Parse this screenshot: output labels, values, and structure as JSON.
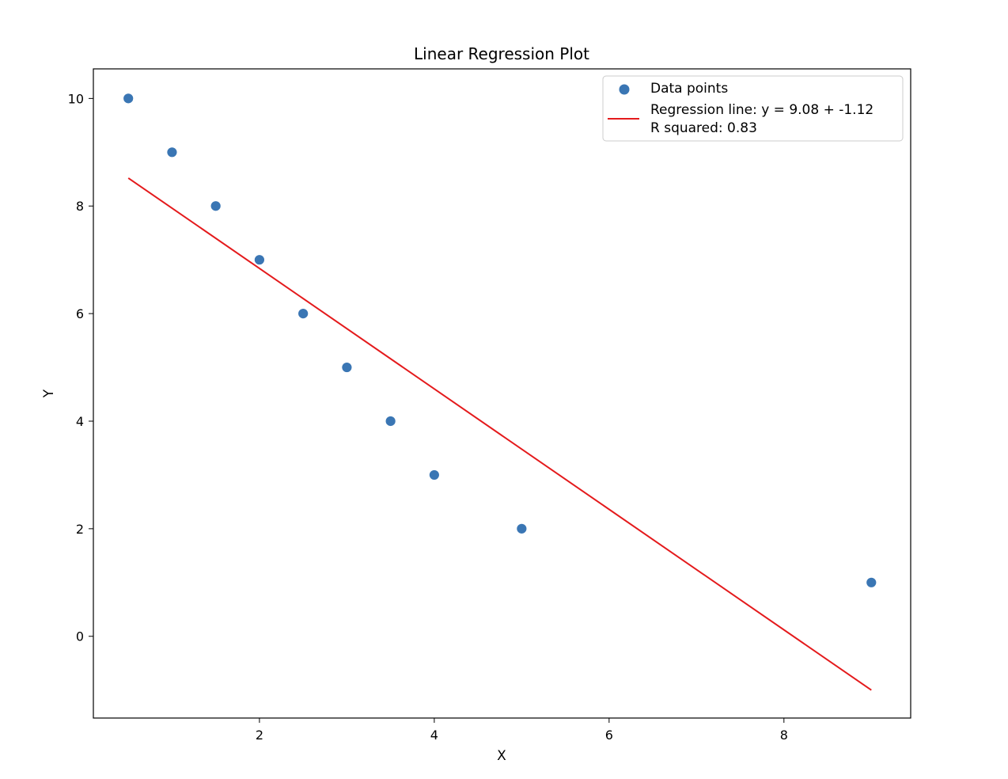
{
  "chart_data": {
    "type": "scatter",
    "title": "Linear Regression Plot",
    "xlabel": "X",
    "ylabel": "Y",
    "xlim": [
      0.1,
      9.45
    ],
    "ylim": [
      -1.52,
      10.55
    ],
    "xticks": [
      2,
      4,
      6,
      8
    ],
    "yticks": [
      0,
      2,
      4,
      6,
      8,
      10
    ],
    "grid": false,
    "legend_position": "upper right",
    "series": [
      {
        "name": "Data points",
        "kind": "scatter",
        "color": "#3a76b4",
        "x": [
          0.5,
          1.0,
          1.5,
          2.0,
          2.5,
          3.0,
          3.5,
          4.0,
          5.0,
          9.0
        ],
        "y": [
          10,
          9,
          8,
          7,
          6,
          5,
          4,
          3,
          2,
          1
        ]
      },
      {
        "name": "Regression line: y = 9.08 + -1.12\nR squared: 0.83",
        "kind": "line",
        "color": "#e41a1c",
        "intercept": 9.08,
        "slope": -1.12,
        "x": [
          0.5,
          9.0
        ]
      }
    ]
  }
}
